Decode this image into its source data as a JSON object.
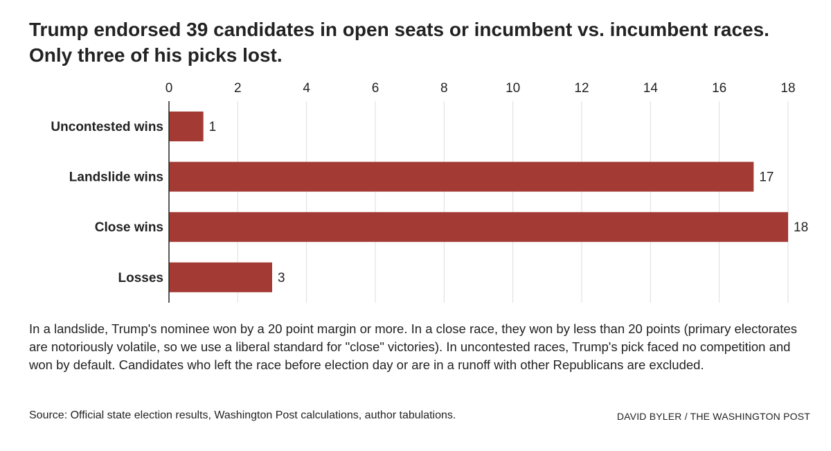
{
  "title": "Trump endorsed 39 candidates in open seats or incumbent vs. incumbent races. Only three of his picks lost.",
  "note": "In a landslide, Trump's nominee won by a 20 point margin or more. In a close race, they won by less than 20 points (primary electorates are notoriously volatile, so we use a liberal standard for \"close\" victories). In uncontested races, Trump's pick faced no competition and won by default. Candidates who left the race before election day or are in a runoff with other Republicans are excluded.",
  "source": "Source: Official state election results, Washington Post calculations, author tabulations.",
  "credit": "DAVID BYLER / THE WASHINGTON POST",
  "chart_data": {
    "type": "bar",
    "orientation": "horizontal",
    "categories": [
      "Uncontested wins",
      "Landslide wins",
      "Close wins",
      "Losses"
    ],
    "values": [
      1,
      17,
      18,
      3
    ],
    "xlim": [
      0,
      18
    ],
    "xticks": [
      0,
      2,
      4,
      6,
      8,
      10,
      12,
      14,
      16,
      18
    ],
    "axis_position": "top",
    "grid": true,
    "bar_color": "#a33a34",
    "grid_color": "#dddddd",
    "axis_color": "#222222"
  }
}
